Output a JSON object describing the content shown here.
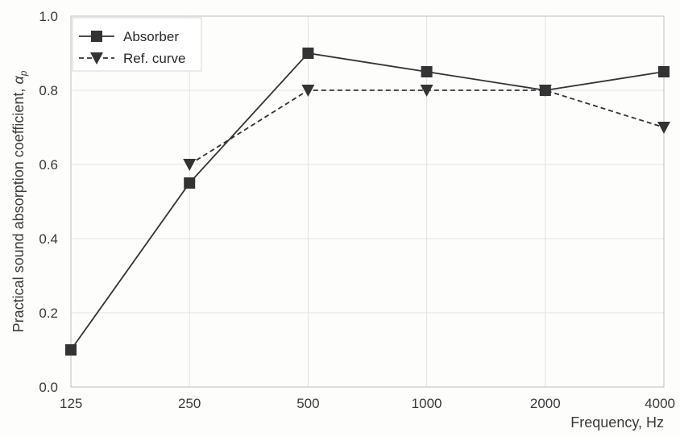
{
  "chart_data": {
    "type": "line",
    "title": "",
    "xlabel": "Frequency, Hz",
    "ylabel_main": "Practical sound absorption coefficient, ",
    "ylabel_symbol": "α",
    "ylabel_subscript": "p",
    "categories": [
      "125",
      "250",
      "500",
      "1000",
      "2000",
      "4000"
    ],
    "ylim": [
      0,
      1.0
    ],
    "yticks": [
      "0.0",
      "0.2",
      "0.4",
      "0.6",
      "0.8",
      "1.0"
    ],
    "grid": true,
    "legend_position": "top-left",
    "series": [
      {
        "name": "Absorber",
        "marker": "square",
        "linestyle": "solid",
        "values": [
          0.1,
          0.55,
          0.9,
          0.85,
          0.8,
          0.85
        ]
      },
      {
        "name": "Ref. curve",
        "marker": "triangle-down",
        "linestyle": "dashed",
        "values": [
          null,
          0.6,
          0.8,
          0.8,
          0.8,
          0.7
        ]
      }
    ],
    "colors": {
      "line": "#333333",
      "grid": "#e2e2e2",
      "frame": "#bdbdbd"
    }
  }
}
